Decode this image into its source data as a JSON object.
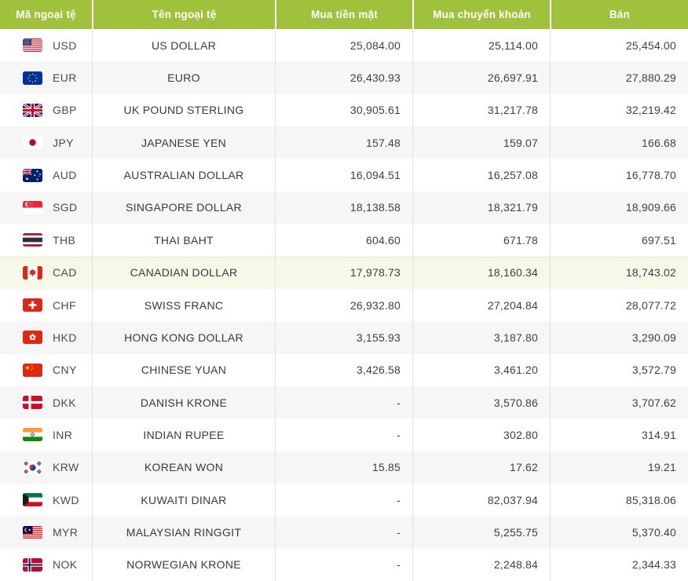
{
  "colors": {
    "header_bg": "#a0c13c",
    "header_text": "#ffffff",
    "row_alt_bg": "#f6f6f7",
    "row_highlight_bg": "#f6f9e7",
    "body_text": "#3e3e48",
    "column_divider": "#e2e2e5"
  },
  "table": {
    "headers": [
      {
        "key": "code",
        "label": "Mã ngoại tệ"
      },
      {
        "key": "name",
        "label": "Tên ngoại tệ"
      },
      {
        "key": "cash",
        "label": "Mua tiền mặt"
      },
      {
        "key": "transfer",
        "label": "Mua chuyển khoản"
      },
      {
        "key": "sell",
        "label": "Bán"
      }
    ],
    "rows": [
      {
        "code": "USD",
        "flag": "us",
        "name": "US DOLLAR",
        "cash": "25,084.00",
        "transfer": "25,114.00",
        "sell": "25,454.00",
        "highlighted": false
      },
      {
        "code": "EUR",
        "flag": "eu",
        "name": "EURO",
        "cash": "26,430.93",
        "transfer": "26,697.91",
        "sell": "27,880.29",
        "highlighted": false
      },
      {
        "code": "GBP",
        "flag": "gb",
        "name": "UK POUND STERLING",
        "cash": "30,905.61",
        "transfer": "31,217.78",
        "sell": "32,219.42",
        "highlighted": false
      },
      {
        "code": "JPY",
        "flag": "jp",
        "name": "JAPANESE YEN",
        "cash": "157.48",
        "transfer": "159.07",
        "sell": "166.68",
        "highlighted": false
      },
      {
        "code": "AUD",
        "flag": "au",
        "name": "AUSTRALIAN DOLLAR",
        "cash": "16,094.51",
        "transfer": "16,257.08",
        "sell": "16,778.70",
        "highlighted": false
      },
      {
        "code": "SGD",
        "flag": "sg",
        "name": "SINGAPORE DOLLAR",
        "cash": "18,138.58",
        "transfer": "18,321.79",
        "sell": "18,909.66",
        "highlighted": false
      },
      {
        "code": "THB",
        "flag": "th",
        "name": "THAI BAHT",
        "cash": "604.60",
        "transfer": "671.78",
        "sell": "697.51",
        "highlighted": false
      },
      {
        "code": "CAD",
        "flag": "ca",
        "name": "CANADIAN DOLLAR",
        "cash": "17,978.73",
        "transfer": "18,160.34",
        "sell": "18,743.02",
        "highlighted": true
      },
      {
        "code": "CHF",
        "flag": "ch",
        "name": "SWISS FRANC",
        "cash": "26,932.80",
        "transfer": "27,204.84",
        "sell": "28,077.72",
        "highlighted": false
      },
      {
        "code": "HKD",
        "flag": "hk",
        "name": "HONG KONG DOLLAR",
        "cash": "3,155.93",
        "transfer": "3,187.80",
        "sell": "3,290.09",
        "highlighted": false
      },
      {
        "code": "CNY",
        "flag": "cn",
        "name": "CHINESE YUAN",
        "cash": "3,426.58",
        "transfer": "3,461.20",
        "sell": "3,572.79",
        "highlighted": false
      },
      {
        "code": "DKK",
        "flag": "dk",
        "name": "DANISH KRONE",
        "cash": "-",
        "transfer": "3,570.86",
        "sell": "3,707.62",
        "highlighted": false
      },
      {
        "code": "INR",
        "flag": "in",
        "name": "INDIAN RUPEE",
        "cash": "-",
        "transfer": "302.80",
        "sell": "314.91",
        "highlighted": false
      },
      {
        "code": "KRW",
        "flag": "kr",
        "name": "KOREAN WON",
        "cash": "15.85",
        "transfer": "17.62",
        "sell": "19.21",
        "highlighted": false
      },
      {
        "code": "KWD",
        "flag": "kw",
        "name": "KUWAITI DINAR",
        "cash": "-",
        "transfer": "82,037.94",
        "sell": "85,318.06",
        "highlighted": false
      },
      {
        "code": "MYR",
        "flag": "my",
        "name": "MALAYSIAN RINGGIT",
        "cash": "-",
        "transfer": "5,255.75",
        "sell": "5,370.40",
        "highlighted": false
      },
      {
        "code": "NOK",
        "flag": "no",
        "name": "NORWEGIAN KRONE",
        "cash": "-",
        "transfer": "2,248.84",
        "sell": "2,344.33",
        "highlighted": false
      }
    ]
  }
}
